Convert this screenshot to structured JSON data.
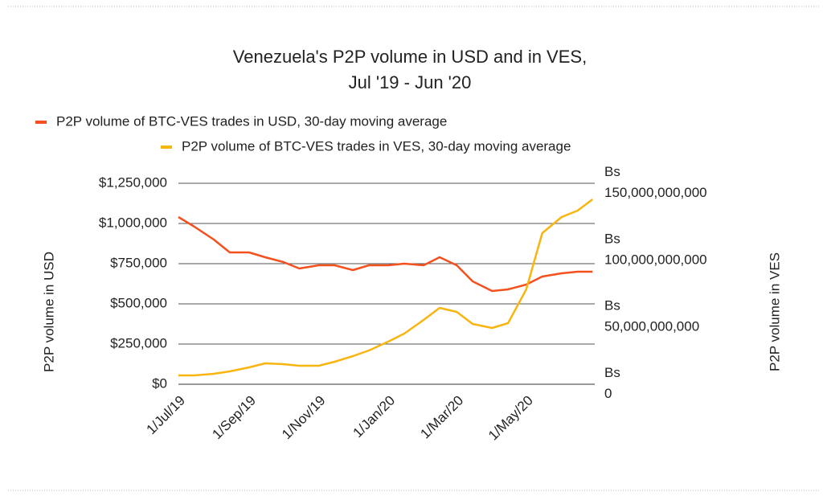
{
  "chart_data": {
    "type": "line",
    "title": "Venezuela's P2P volume in USD and in VES,",
    "subtitle": "Jul '19 - Jun '20",
    "y_label": "P2P volume in USD",
    "y2_label": "P2P volume in VES",
    "x": [
      "2019-07-01",
      "2019-07-15",
      "2019-08-01",
      "2019-08-15",
      "2019-09-01",
      "2019-09-15",
      "2019-10-01",
      "2019-10-15",
      "2019-11-01",
      "2019-11-15",
      "2019-12-01",
      "2019-12-15",
      "2020-01-01",
      "2020-01-15",
      "2020-02-01",
      "2020-02-15",
      "2020-03-01",
      "2020-03-15",
      "2020-04-01",
      "2020-04-15",
      "2020-05-01",
      "2020-05-15",
      "2020-06-01",
      "2020-06-15",
      "2020-06-28"
    ],
    "series": [
      {
        "name": "P2P volume of BTC-VES trades in USD, 30-day moving average",
        "color": "#f4511e",
        "axis": "y",
        "values": [
          1040000,
          980000,
          900000,
          820000,
          820000,
          790000,
          760000,
          720000,
          740000,
          740000,
          710000,
          740000,
          740000,
          750000,
          740000,
          790000,
          740000,
          640000,
          580000,
          590000,
          620000,
          670000,
          690000,
          700000,
          700000
        ]
      },
      {
        "name": "P2P volume of BTC-VES trades in VES, 30-day moving average",
        "color": "#f9b50f",
        "axis": "y2",
        "values": [
          6600000000,
          6600000000,
          7800000000,
          9600000000,
          12600000000,
          15600000000,
          15000000000,
          13800000000,
          13800000000,
          16800000000,
          21000000000,
          25200000000,
          31800000000,
          37800000000,
          48000000000,
          57000000000,
          54000000000,
          45000000000,
          42000000000,
          45600000000,
          70800000000,
          112800000000,
          124800000000,
          129600000000,
          138000000000
        ]
      }
    ],
    "xlim": [
      "2019-07-01",
      "2020-06-30"
    ],
    "xticks": [
      {
        "value": "2019-07-01",
        "label": "1/Jul/19"
      },
      {
        "value": "2019-09-01",
        "label": "1/Sep/19"
      },
      {
        "value": "2019-11-01",
        "label": "1/Nov/19"
      },
      {
        "value": "2020-01-01",
        "label": "1/Jan/20"
      },
      {
        "value": "2020-03-01",
        "label": "1/Mar/20"
      },
      {
        "value": "2020-05-01",
        "label": "1/May/20"
      }
    ],
    "ylim": [
      0,
      1250000
    ],
    "yticks": [
      {
        "value": 0,
        "label": "$0"
      },
      {
        "value": 250000,
        "label": "$250,000"
      },
      {
        "value": 500000,
        "label": "$500,000"
      },
      {
        "value": 750000,
        "label": "$750,000"
      },
      {
        "value": 1000000,
        "label": "$1,000,000"
      },
      {
        "value": 1250000,
        "label": "$1,250,000"
      }
    ],
    "y2lim": [
      0,
      150000000000
    ],
    "y2ticks": [
      {
        "value": 0,
        "label": "Bs 0"
      },
      {
        "value": 50000000000,
        "label": "Bs 50,000,000,000"
      },
      {
        "value": 100000000000,
        "label": "Bs 100,000,000,000"
      },
      {
        "value": 150000000000,
        "label": "Bs 150,000,000,000"
      }
    ],
    "grid": true
  }
}
